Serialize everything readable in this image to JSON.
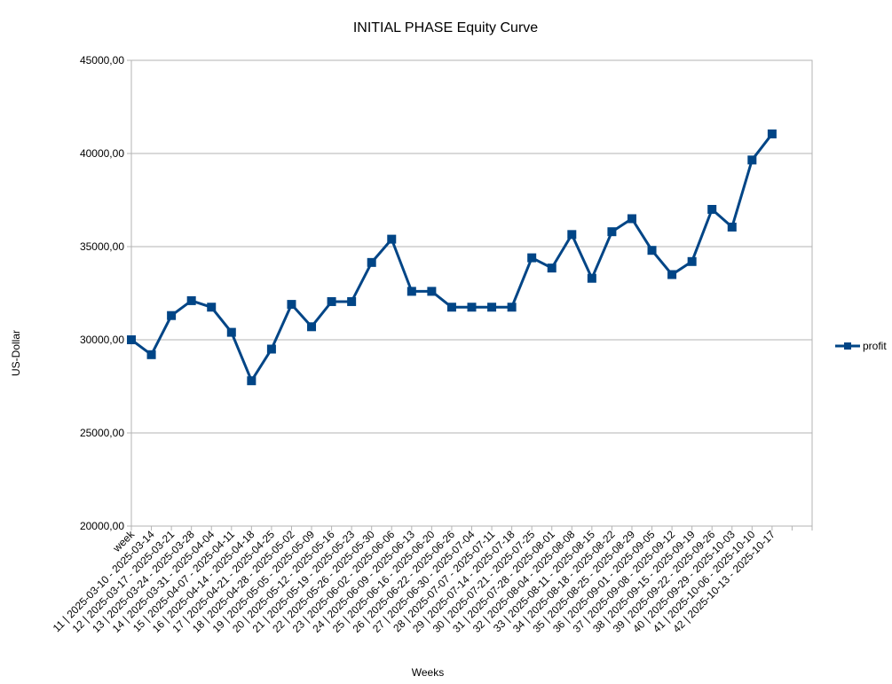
{
  "chart_data": {
    "type": "line",
    "title": "INITIAL PHASE Equity Curve",
    "xlabel": "Weeks",
    "ylabel": "US-Dollar",
    "ylim": [
      20000,
      45000
    ],
    "y_ticks": [
      "20000,00",
      "25000,00",
      "30000,00",
      "35000,00",
      "40000,00",
      "45000,00"
    ],
    "grid": "horizontal",
    "legend_position": "right",
    "categories": [
      "week",
      "11 | 2025-03-10 - 2025-03-14",
      "12 | 2025-03-17 - 2025-03-21",
      "13 | 2025-03-24 - 2025-03-28",
      "14 | 2025-03-31 - 2025-04-04",
      "15 | 2025-04-07 - 2025-04-11",
      "16 | 2025-04-14 - 2025-04-18",
      "17 | 2025-04-21 - 2025-04-25",
      "18 | 2025-04-28 - 2025-05-02",
      "19 | 2025-05-05 - 2025-05-09",
      "20 | 2025-05-12 - 2025-05-16",
      "21 | 2025-05-19 - 2025-05-23",
      "22 | 2025-05-26 - 2025-05-30",
      "23 | 2025-06-02 - 2025-06-06",
      "24 | 2025-06-09 - 2025-06-13",
      "25 | 2025-06-16 - 2025-06-20",
      "26 | 2025-06-22 - 2025-06-26",
      "27 | 2025-06-30 - 2025-07-04",
      "28 | 2025-07-07 - 2025-07-11",
      "29 | 2025-07-14 - 2025-07-18",
      "30 | 2025-07-21 - 2025-07-25",
      "31 | 2025-07-28 - 2025-08-01",
      "32 | 2025-08-04 - 2025-08-08",
      "33 | 2025-08-11 - 2025-08-15",
      "34 | 2025-08-18 - 2025-08-22",
      "35 | 2025-08-25 - 2025-08-29",
      "36 | 2025-09-01 - 2025-09-05",
      "37 | 2025-09-08 - 2025-09-12",
      "38 | 2025-09-15 - 2025-09-19",
      "39 | 2025-09-22 - 2025-09-26",
      "40 | 2025-09-29 - 2025-10-03",
      "41 | 2025-10-06 - 2025-10-10",
      "42 | 2025-10-13 - 2025-10-17"
    ],
    "series": [
      {
        "name": "profit",
        "color": "#004586",
        "values": [
          30000,
          29200,
          31300,
          32100,
          31750,
          30400,
          27800,
          29500,
          31900,
          30700,
          32050,
          32050,
          34150,
          35400,
          32600,
          32600,
          31750,
          31750,
          31750,
          31750,
          34400,
          33850,
          35650,
          33300,
          35800,
          36500,
          34800,
          33500,
          34200,
          37000,
          36050,
          39650,
          41050
        ]
      }
    ]
  }
}
